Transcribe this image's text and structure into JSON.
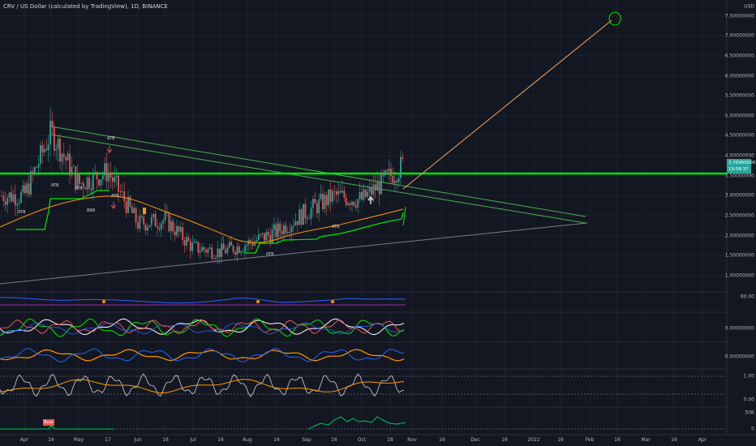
{
  "chart_title": "CRV / US Dollar (calculated by TradingView), 1D, BINANCE",
  "currency_label": "USD",
  "price_ticks": [
    "7.50000000",
    "7.00000000",
    "6.50000000",
    "6.00000000",
    "5.50000000",
    "5.00000000",
    "4.50000000",
    "4.00000000",
    "3.50000000",
    "3.00000000",
    "2.50000000",
    "2.00000000",
    "1.50000000",
    "1.00000000"
  ],
  "current_price": {
    "value": "3.76960000",
    "countdown": "19:58:37",
    "color": "#26a69a"
  },
  "indicator_labels": {
    "rsi_level": "60.00",
    "macd_zero_1": "0.00000000",
    "macd_zero_2": "0.00000000",
    "stoch_top": "1.00",
    "stoch_bottom": "0.00",
    "volume_top": "50K",
    "volume_bottom": "0"
  },
  "time_labels": [
    "Apr",
    "16",
    "May",
    "17",
    "Jun",
    "16",
    "Jul",
    "16",
    "Aug",
    "16",
    "Sep",
    "16",
    "Oct",
    "18",
    "Nov",
    "16",
    "Dec",
    "16",
    "2022",
    "16",
    "Feb",
    "16",
    "Mar",
    "16",
    "Apr"
  ],
  "annotations": {
    "ath_1": "ATB",
    "ath_2": "ATB",
    "ath_3": "ATB",
    "ath_4": "ATB",
    "ath_5": "ATB",
    "ath_6": "ATB",
    "ath_7": "ATB",
    "brb": "BRB",
    "bear": "Bear"
  },
  "colors": {
    "background": "#131722",
    "up": "#26a69a",
    "down": "#ef5350",
    "support_green": "#00e600",
    "ma_orange": "#ff9800",
    "trend_gray": "#787b86",
    "target_line": "#f4a460",
    "rsi_blue": "#2962ff",
    "rsi_band": "#9c27b0"
  },
  "chart_data": {
    "type": "candlestick",
    "symbol": "CRV / US Dollar",
    "interval": "1D",
    "exchange": "BINANCE",
    "y_unit": "USD",
    "ylim": [
      1.0,
      7.5
    ],
    "horizontal_resistance": 3.5,
    "target_price": 7.5,
    "last_price": 3.7696,
    "price_path": [
      {
        "date": "Apr",
        "price": 3.0
      },
      {
        "date": "Apr 16",
        "price": 4.6
      },
      {
        "date": "May",
        "price": 3.3
      },
      {
        "date": "May 17",
        "price": 3.6
      },
      {
        "date": "Jun",
        "price": 2.3
      },
      {
        "date": "Jun 16",
        "price": 2.4
      },
      {
        "date": "Jul",
        "price": 1.7
      },
      {
        "date": "Jul 16",
        "price": 1.6
      },
      {
        "date": "Aug",
        "price": 1.8
      },
      {
        "date": "Aug 16",
        "price": 2.1
      },
      {
        "date": "Sep",
        "price": 2.6
      },
      {
        "date": "Sep 16",
        "price": 3.0
      },
      {
        "date": "Oct",
        "price": 2.9
      },
      {
        "date": "Oct 18",
        "price": 3.77
      }
    ]
  }
}
